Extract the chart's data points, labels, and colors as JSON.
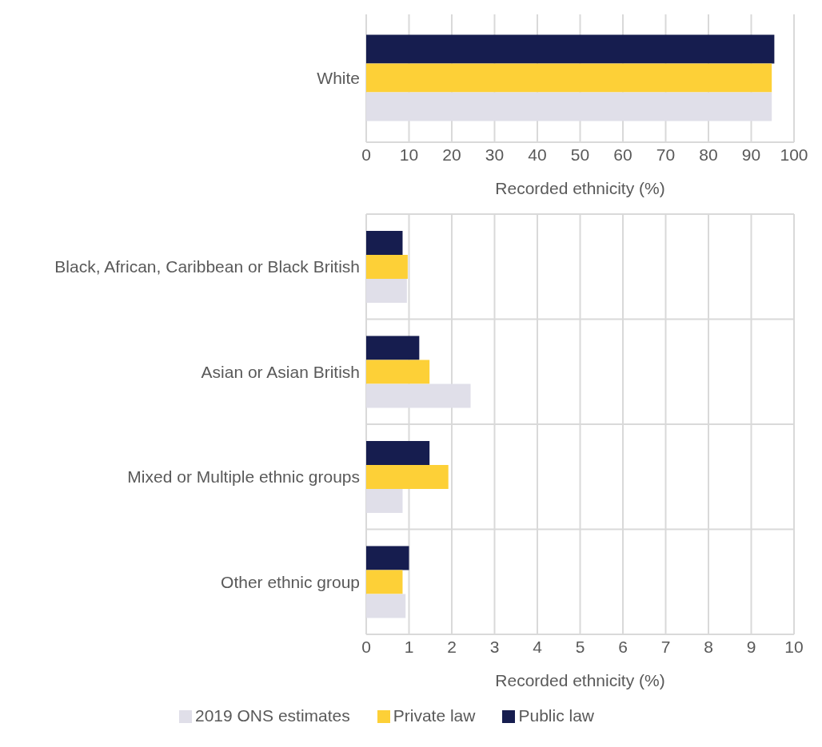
{
  "chart_data": [
    {
      "type": "bar",
      "orientation": "horizontal",
      "categories": [
        "White"
      ],
      "xlabel": "Recorded ethnicity (%)",
      "xlim": [
        0,
        100
      ],
      "xticks": [
        0,
        10,
        20,
        30,
        40,
        50,
        60,
        70,
        80,
        90,
        100
      ],
      "grid": "x",
      "legend": false,
      "series": [
        {
          "color": "#161d4f",
          "values": [
            95.4
          ]
        },
        {
          "color": "#fdd037",
          "values": [
            94.8
          ]
        },
        {
          "color": "#e0dfe9",
          "values": [
            94.8
          ]
        }
      ]
    },
    {
      "type": "bar",
      "orientation": "horizontal",
      "categories": [
        "Black, African, Caribbean or Black British",
        "Asian or Asian British",
        "Mixed or Multiple ethnic groups",
        "Other ethnic group"
      ],
      "xlabel": "Recorded ethnicity (%)",
      "xlim": [
        0,
        10
      ],
      "xticks": [
        0,
        1,
        2,
        3,
        4,
        5,
        6,
        7,
        8,
        9,
        10
      ],
      "grid": true,
      "legend": "bottom",
      "series": [
        {
          "name": "Public law",
          "color": "#161d4f",
          "values": [
            0.85,
            1.24,
            1.48,
            1.0
          ]
        },
        {
          "name": "Private law",
          "color": "#fdd037",
          "values": [
            0.97,
            1.48,
            1.92,
            0.85
          ]
        },
        {
          "name": "2019 ONS estimates",
          "color": "#e0dfe9",
          "values": [
            0.95,
            2.44,
            0.85,
            0.92
          ]
        }
      ]
    }
  ]
}
